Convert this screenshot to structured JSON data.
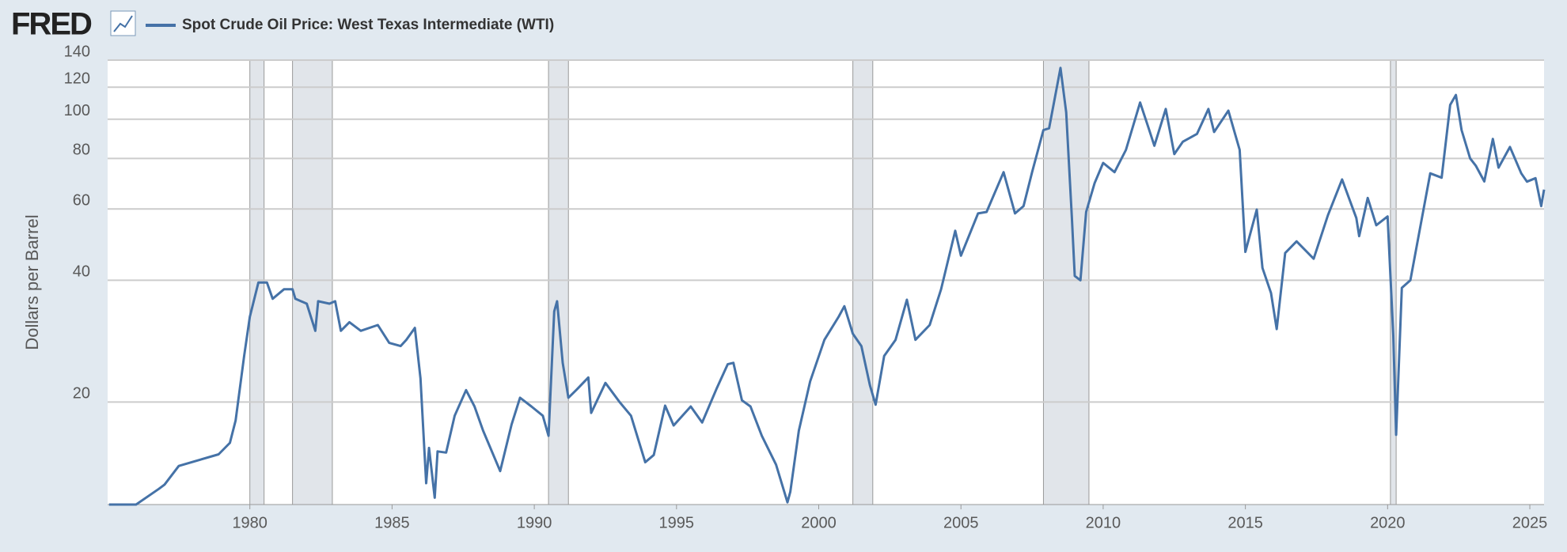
{
  "logo": "FRED",
  "chart_data": {
    "type": "line",
    "ylabel": "Dollars per Barrel",
    "log_scale": true,
    "grid": true,
    "xlim": [
      1975,
      2025.5
    ],
    "xticks": [
      1980,
      1985,
      1990,
      1995,
      2000,
      2005,
      2010,
      2015,
      2020,
      2025
    ],
    "ylim": [
      11.16,
      140
    ],
    "yticks": [
      20,
      40,
      60,
      80,
      100,
      120,
      140
    ],
    "recessions": [
      [
        1980.0,
        1980.5
      ],
      [
        1981.5,
        1982.9
      ],
      [
        1990.5,
        1991.2
      ],
      [
        2001.2,
        2001.9
      ],
      [
        2007.9,
        2009.5
      ],
      [
        2020.1,
        2020.3
      ]
    ],
    "recession_color": "#e1e5ea",
    "x": [
      1975.05,
      1976.0,
      1976.8,
      1977.0,
      1977.5,
      1978.9,
      1979.3,
      1979.5,
      1979.8,
      1980.0,
      1980.3,
      1980.6,
      1980.8,
      1981.2,
      1981.5,
      1981.6,
      1982.0,
      1982.3,
      1982.4,
      1982.8,
      1983.0,
      1983.2,
      1983.5,
      1983.9,
      1984.5,
      1984.9,
      1985.3,
      1985.5,
      1985.8,
      1986.0,
      1986.2,
      1986.3,
      1986.5,
      1986.6,
      1986.9,
      1987.2,
      1987.6,
      1987.9,
      1988.2,
      1988.8,
      1989.2,
      1989.5,
      1989.9,
      1990.3,
      1990.5,
      1990.7,
      1990.8,
      1991.0,
      1991.2,
      1991.5,
      1991.9,
      1992.0,
      1992.5,
      1993.0,
      1993.4,
      1993.9,
      1994.2,
      1994.6,
      1994.9,
      1995.5,
      1995.9,
      1996.4,
      1996.8,
      1997.0,
      1997.3,
      1997.6,
      1998.0,
      1998.5,
      1998.9,
      1999.0,
      1999.3,
      1999.7,
      2000.2,
      2000.7,
      2000.9,
      2001.2,
      2001.5,
      2001.8,
      2002.0,
      2002.3,
      2002.7,
      2003.1,
      2003.4,
      2003.9,
      2004.3,
      2004.8,
      2005.0,
      2005.6,
      2005.9,
      2006.5,
      2006.9,
      2007.2,
      2007.5,
      2007.9,
      2008.1,
      2008.5,
      2008.7,
      2008.9,
      2009.0,
      2009.2,
      2009.4,
      2009.7,
      2010.0,
      2010.4,
      2010.8,
      2011.3,
      2011.6,
      2011.8,
      2012.2,
      2012.5,
      2012.8,
      2013.3,
      2013.7,
      2013.9,
      2014.4,
      2014.8,
      2015.0,
      2015.4,
      2015.6,
      2015.9,
      2016.1,
      2016.4,
      2016.8,
      2017.4,
      2017.9,
      2018.4,
      2018.9,
      2019.0,
      2019.3,
      2019.6,
      2020.0,
      2020.2,
      2020.3,
      2020.5,
      2020.8,
      2021.1,
      2021.5,
      2021.9,
      2022.2,
      2022.4,
      2022.6,
      2022.9,
      2023.1,
      2023.4,
      2023.7,
      2023.9,
      2024.3,
      2024.7,
      2024.9,
      2025.2,
      2025.4,
      2025.5
    ],
    "series": [
      {
        "name": "Spot Crude Oil Price: West Texas Intermediate (WTI)",
        "color": "#4572a7",
        "values": [
          11.16,
          11.16,
          12.2,
          12.5,
          13.9,
          14.85,
          15.85,
          18,
          26,
          32.5,
          39.5,
          39.5,
          36,
          38,
          38,
          36,
          35,
          30,
          35.5,
          35,
          35.5,
          30,
          31.5,
          30,
          31,
          28,
          27.5,
          28.5,
          30.5,
          22.9,
          12.6,
          15.4,
          11.6,
          15.1,
          15.0,
          18.5,
          21.4,
          19.5,
          17.0,
          13.5,
          17.6,
          20.5,
          19.5,
          18.5,
          16.5,
          33.5,
          35.5,
          25,
          20.5,
          21.5,
          23,
          18.8,
          22.3,
          20.0,
          18.5,
          14.2,
          14.8,
          19.6,
          17.5,
          19.5,
          17.8,
          21.5,
          24.8,
          25,
          20.2,
          19.5,
          16.5,
          14,
          11.3,
          12,
          17,
          22.5,
          28.5,
          32.5,
          34.5,
          29.5,
          27.5,
          22,
          19.7,
          26,
          28.5,
          35.8,
          28.5,
          31,
          38,
          53,
          46,
          58.5,
          59,
          74,
          58.5,
          61,
          74,
          94,
          95,
          133.9,
          104,
          57,
          41,
          40,
          59,
          69.5,
          78,
          74,
          84,
          110,
          95,
          86,
          106,
          82,
          88,
          92,
          106,
          93,
          105,
          84,
          47,
          59.8,
          42.9,
          37.2,
          30.3,
          46.7,
          49.9,
          45.2,
          57.9,
          71,
          57,
          51.4,
          63.9,
          54.7,
          57.5,
          29.2,
          16.6,
          38.3,
          40,
          52,
          73.5,
          71.7,
          108.5,
          114.8,
          94,
          80,
          76.8,
          70.2,
          89.4,
          75.9,
          85.4,
          73.5,
          70.1,
          71.5,
          61,
          67
        ]
      }
    ]
  }
}
